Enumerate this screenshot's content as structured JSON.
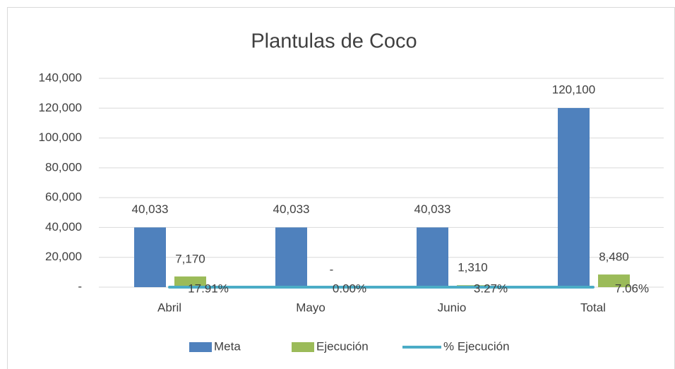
{
  "chart_data": {
    "type": "bar_line",
    "title": "Plantulas de Coco",
    "categories": [
      "Abril",
      "Mayo",
      "Junio",
      "Total"
    ],
    "series": [
      {
        "name": "Meta",
        "type": "bar",
        "color": "#4f81bd",
        "values": [
          40033,
          40033,
          40033,
          120100
        ],
        "value_labels": [
          "40,033",
          "40,033",
          "40,033",
          "120,100"
        ]
      },
      {
        "name": "Ejecución",
        "type": "bar",
        "color": "#9bbb59",
        "values": [
          7170,
          0,
          1310,
          8480
        ],
        "value_labels": [
          "7,170",
          "-",
          "1,310",
          "8,480"
        ]
      },
      {
        "name": "% Ejecución",
        "type": "line",
        "color": "#4bacc6",
        "values": [
          17.91,
          0,
          3.27,
          7.06
        ],
        "value_labels": [
          "17.91%",
          "0.00%",
          "3.27%",
          "7.06%"
        ]
      }
    ],
    "ylim": [
      0,
      140000
    ],
    "yticks": [
      {
        "value": 0,
        "label": "-"
      },
      {
        "value": 20000,
        "label": "20,000"
      },
      {
        "value": 40000,
        "label": "40,000"
      },
      {
        "value": 60000,
        "label": "60,000"
      },
      {
        "value": 80000,
        "label": "80,000"
      },
      {
        "value": 100000,
        "label": "100,000"
      },
      {
        "value": 120000,
        "label": "120,000"
      },
      {
        "value": 140000,
        "label": "140,000"
      }
    ],
    "grid": true,
    "legend": "bottom"
  }
}
